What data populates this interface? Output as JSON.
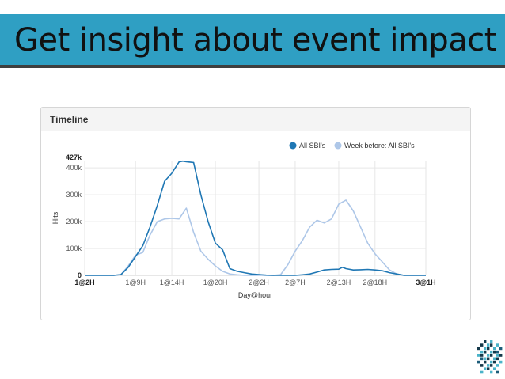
{
  "slide": {
    "title": "Get insight about event impact"
  },
  "panel": {
    "title": "Timeline"
  },
  "colors": {
    "banner": "#2f9fc3",
    "series_current": "#1f77b4",
    "series_previous": "#aec7e8"
  },
  "chart_data": {
    "type": "line",
    "title": "",
    "xlabel": "Day@hour",
    "ylabel": "Hits",
    "x_tick_labels": [
      "1@2H",
      "1@9H",
      "1@14H",
      "1@20H",
      "2@2H",
      "2@7H",
      "2@13H",
      "2@18H",
      "3@1H"
    ],
    "x_tick_hours": [
      2,
      9,
      14,
      20,
      26,
      31,
      37,
      42,
      49
    ],
    "y_tick_labels": [
      "0",
      "100k",
      "200k",
      "300k",
      "400k",
      "427k"
    ],
    "y_tick_values": [
      0,
      100000,
      200000,
      300000,
      400000,
      427000
    ],
    "ylim": [
      0,
      427000
    ],
    "legend_position": "top-right",
    "grid": true,
    "series": [
      {
        "name": "All SBI's",
        "x_hours": [
          2,
          4,
          6,
          7,
          8,
          9,
          10,
          11,
          12,
          13,
          14,
          15,
          15.5,
          16,
          17,
          18,
          19,
          20,
          21,
          22,
          23,
          24,
          25,
          26,
          27,
          28,
          29,
          30,
          31,
          32,
          33,
          34,
          35,
          36,
          37,
          37.5,
          38,
          39,
          40,
          41,
          42,
          43,
          44,
          45,
          46,
          47,
          48,
          49
        ],
        "values": [
          0,
          0,
          0,
          3000,
          30000,
          70000,
          110000,
          180000,
          260000,
          350000,
          380000,
          422000,
          425000,
          423000,
          420000,
          300000,
          200000,
          120000,
          95000,
          25000,
          15000,
          10000,
          5000,
          3000,
          1000,
          0,
          0,
          0,
          0,
          2000,
          5000,
          12000,
          20000,
          22000,
          23000,
          30000,
          25000,
          20000,
          21000,
          22000,
          20000,
          17000,
          10000,
          5000,
          0,
          0,
          0,
          0
        ]
      },
      {
        "name": "Week before: All SBI's",
        "x_hours": [
          2,
          4,
          6,
          7,
          8,
          9,
          10,
          11,
          12,
          13,
          14,
          15,
          16,
          17,
          18,
          19,
          20,
          21,
          22,
          23,
          24,
          25,
          26,
          27,
          28,
          29,
          30,
          31,
          32,
          33,
          34,
          35,
          36,
          37,
          38,
          39,
          40,
          41,
          42,
          43,
          44,
          45,
          46,
          47,
          48,
          49
        ],
        "values": [
          0,
          0,
          0,
          3000,
          35000,
          75000,
          85000,
          150000,
          200000,
          210000,
          212000,
          210000,
          250000,
          160000,
          90000,
          60000,
          35000,
          15000,
          5000,
          2000,
          0,
          0,
          0,
          0,
          0,
          3000,
          40000,
          90000,
          130000,
          180000,
          205000,
          195000,
          210000,
          265000,
          280000,
          240000,
          180000,
          120000,
          80000,
          50000,
          20000,
          5000,
          0,
          0,
          0,
          0
        ]
      }
    ]
  }
}
